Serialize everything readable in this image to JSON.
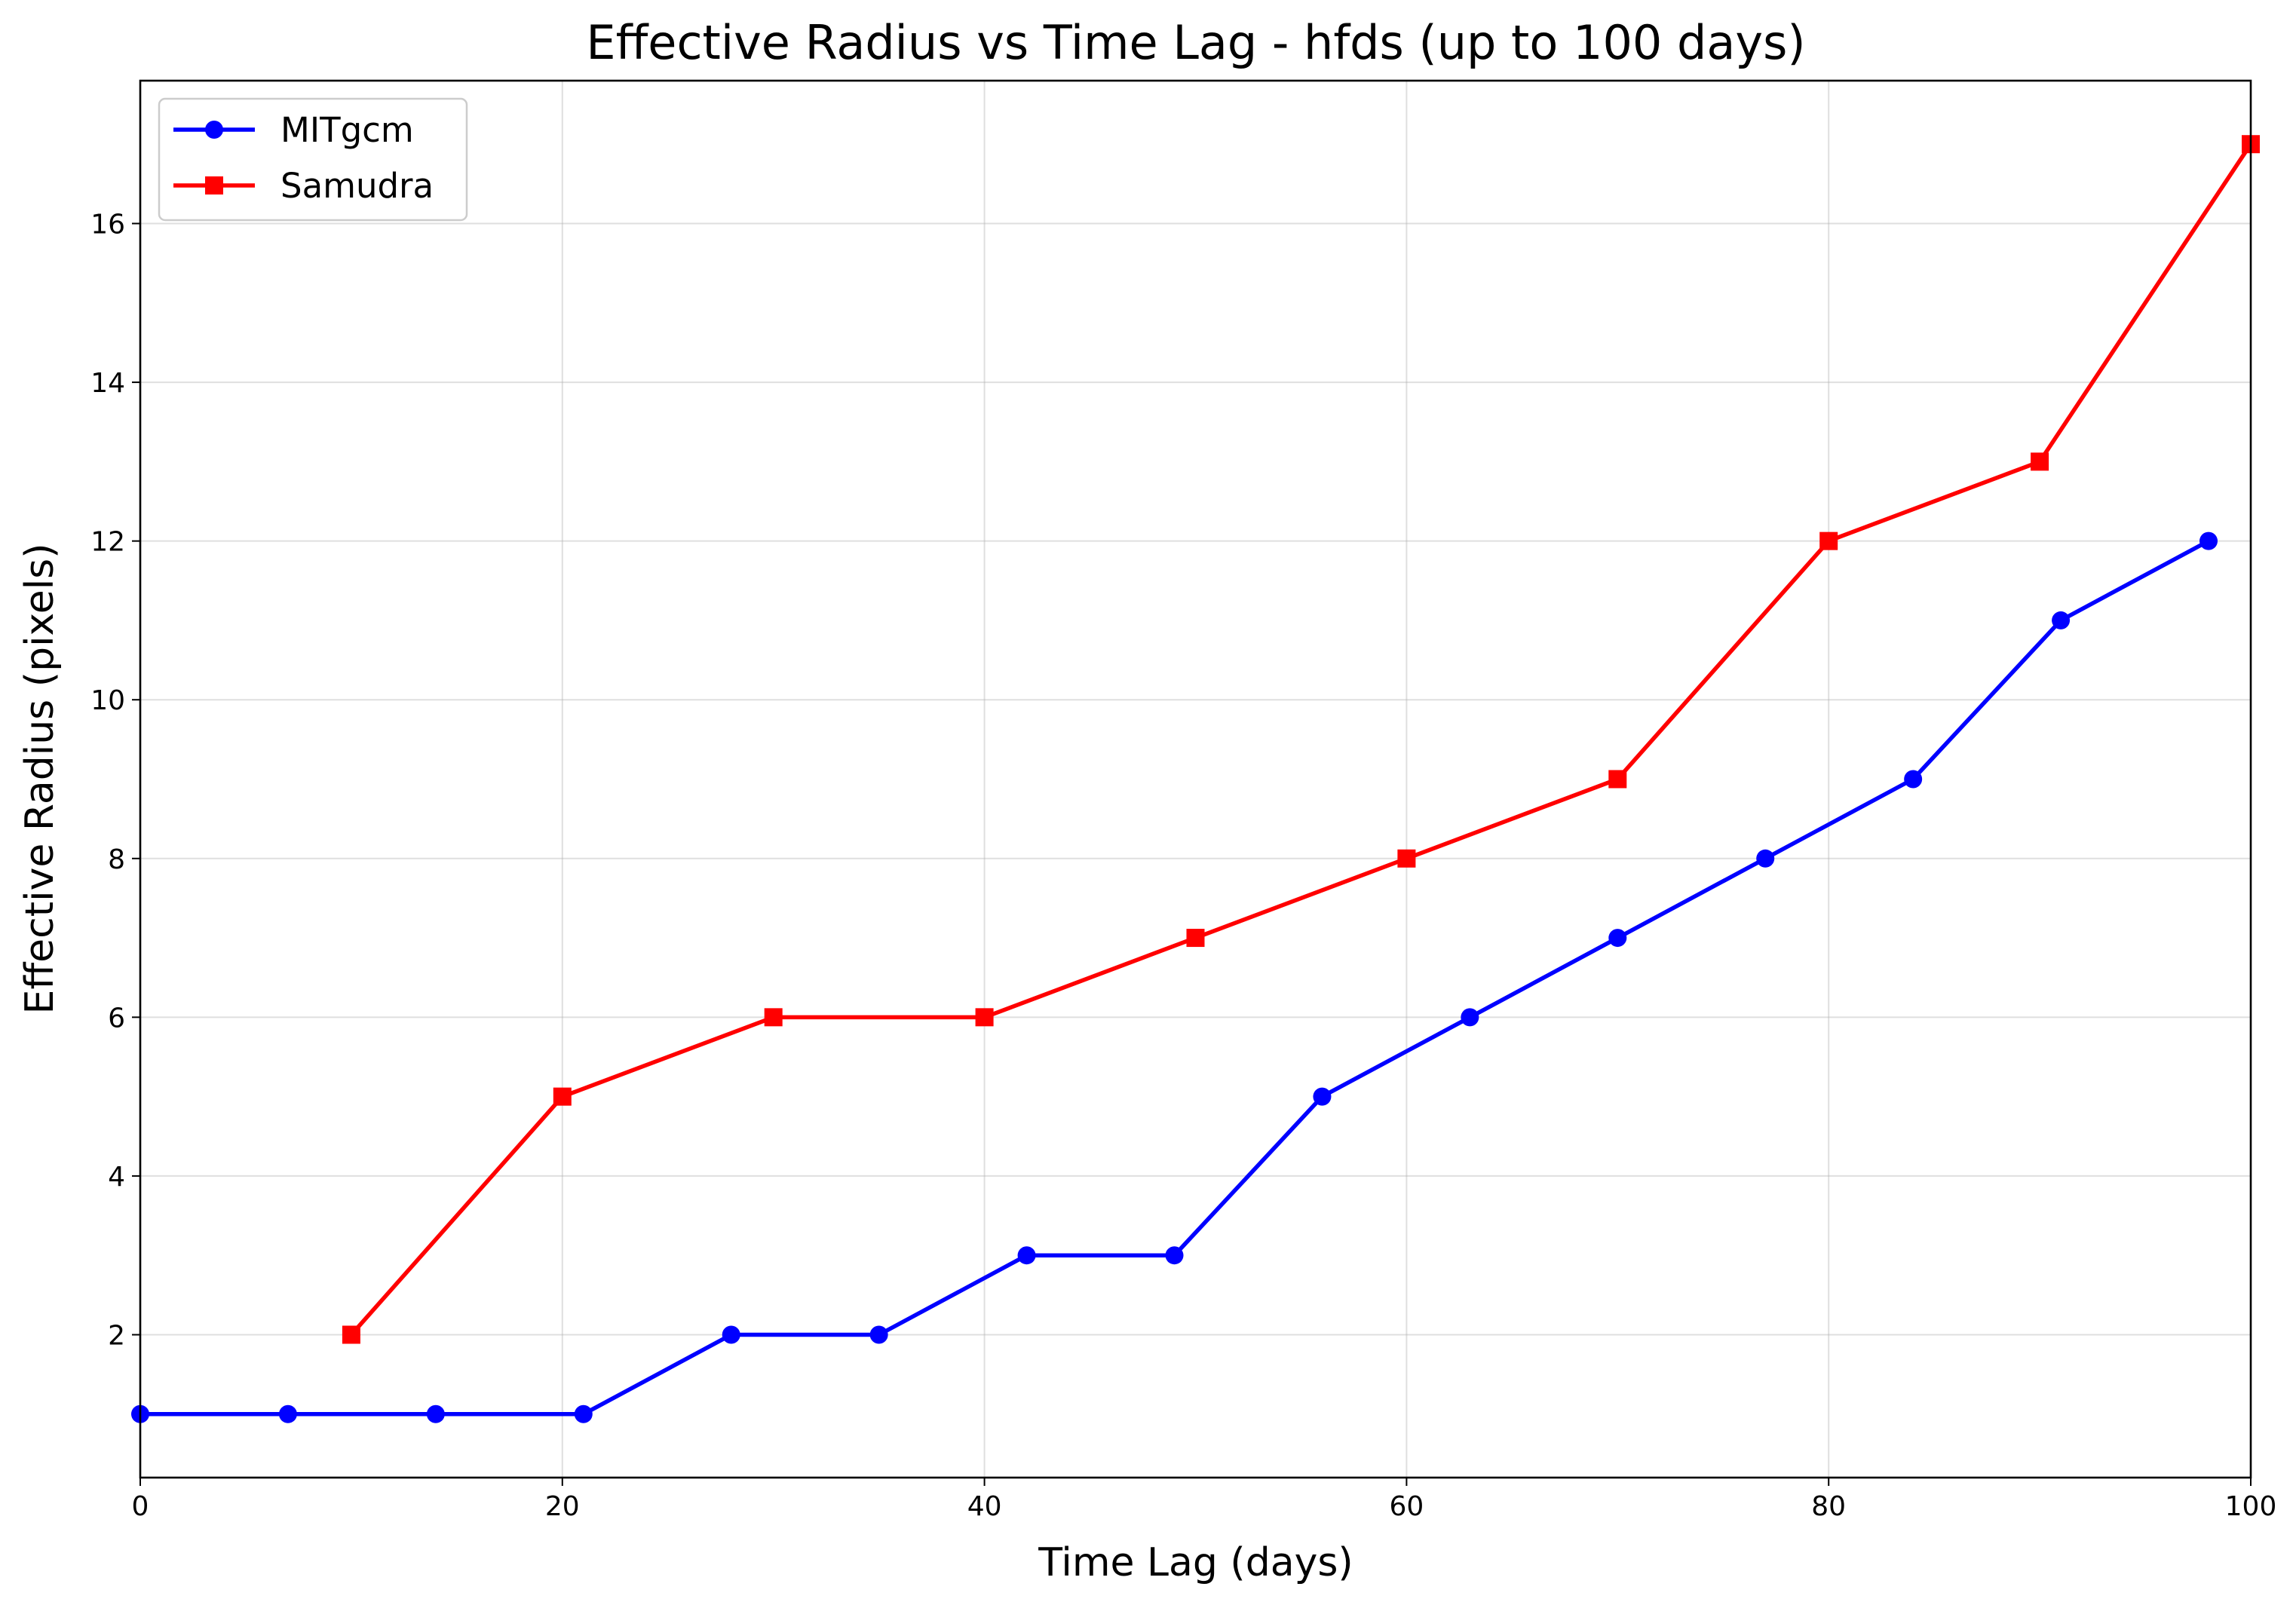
{
  "chart_data": {
    "type": "line",
    "title": "Effective Radius vs Time Lag - hfds (up to 100 days)",
    "xlabel": "Time Lag (days)",
    "ylabel": "Effective Radius (pixels)",
    "xlim": [
      0,
      100
    ],
    "ylim": [
      0.2,
      17.8
    ],
    "xticks": [
      0,
      20,
      40,
      60,
      80,
      100
    ],
    "yticks": [
      2,
      4,
      6,
      8,
      10,
      12,
      14,
      16
    ],
    "grid": true,
    "legend_position": "upper-left",
    "series": [
      {
        "name": "MITgcm",
        "color": "#0000ff",
        "marker": "circle",
        "x": [
          0,
          7,
          14,
          21,
          28,
          35,
          42,
          49,
          56,
          63,
          70,
          77,
          84,
          91,
          98
        ],
        "y": [
          1,
          1,
          1,
          1,
          2,
          2,
          3,
          3,
          5,
          6,
          7,
          8,
          9,
          11,
          12
        ]
      },
      {
        "name": "Samudra",
        "color": "#ff0000",
        "marker": "square",
        "x": [
          10,
          20,
          30,
          40,
          50,
          60,
          70,
          80,
          90,
          100
        ],
        "y": [
          2,
          5,
          6,
          6,
          7,
          8,
          9,
          12,
          13,
          17
        ]
      }
    ]
  }
}
